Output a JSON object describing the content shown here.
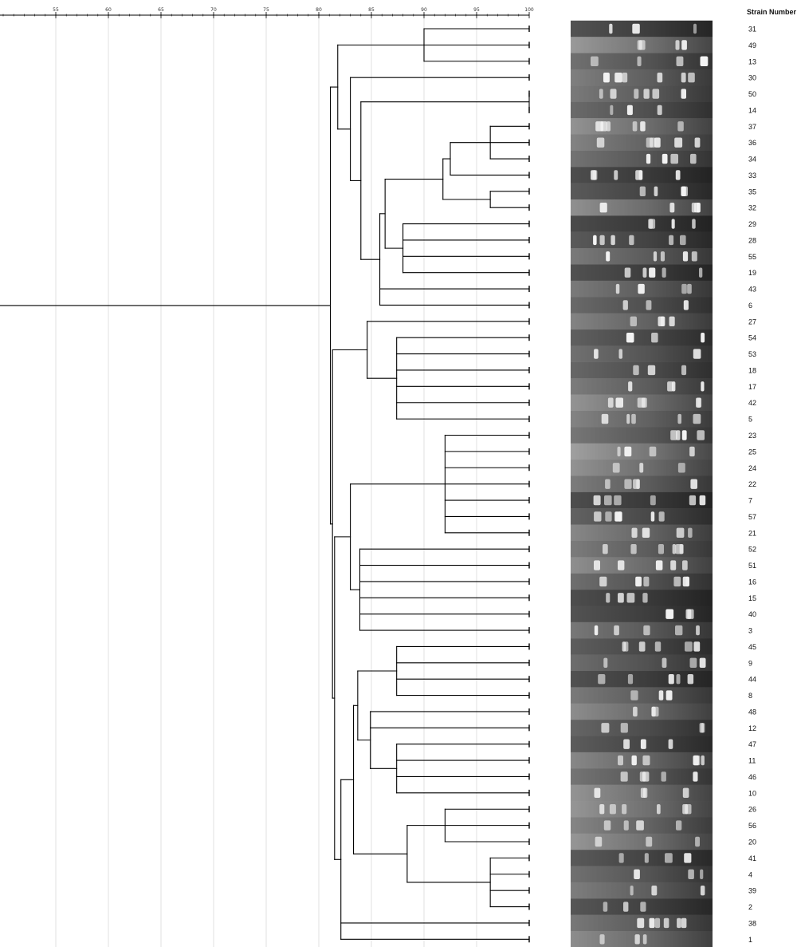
{
  "chart_data": {
    "type": "dendrogram",
    "scale": {
      "min": 50,
      "max": 100,
      "ticks": [
        55,
        60,
        65,
        70,
        75,
        80,
        85,
        90,
        95,
        100
      ]
    },
    "column_header": "Strain Number",
    "strains": [
      "31",
      "49",
      "13",
      "30",
      "50",
      "14",
      "37",
      "36",
      "34",
      "33",
      "35",
      "32",
      "29",
      "28",
      "55",
      "19",
      "43",
      "6",
      "27",
      "54",
      "53",
      "18",
      "17",
      "42",
      "5",
      "23",
      "25",
      "24",
      "22",
      "7",
      "57",
      "21",
      "52",
      "51",
      "16",
      "15",
      "40",
      "3",
      "45",
      "9",
      "44",
      "8",
      "48",
      "12",
      "47",
      "11",
      "46",
      "10",
      "26",
      "56",
      "20",
      "41",
      "4",
      "39",
      "2",
      "38",
      "1"
    ],
    "merges": [
      {
        "members": [
          "31",
          "49",
          "13"
        ],
        "similarity": 90.0
      },
      {
        "members": [
          "50",
          "14"
        ],
        "similarity": 100
      },
      {
        "members": [
          "37",
          "36",
          "34"
        ],
        "similarity": 96.3
      },
      {
        "members": [
          "37",
          "36",
          "34",
          "33"
        ],
        "similarity": 92.5
      },
      {
        "members": [
          "35",
          "32"
        ],
        "similarity": 96.3
      },
      {
        "members": [
          "37",
          "36",
          "34",
          "33",
          "35",
          "32"
        ],
        "similarity": 91.8
      },
      {
        "members": [
          "29",
          "28",
          "55",
          "19"
        ],
        "similarity": 88.0
      },
      {
        "members": [
          "37",
          "36",
          "34",
          "33",
          "35",
          "32",
          "29",
          "28",
          "55",
          "19"
        ],
        "similarity": 86.3
      },
      {
        "members": [
          "37",
          "36",
          "34",
          "33",
          "35",
          "32",
          "29",
          "28",
          "55",
          "19",
          "43",
          "6"
        ],
        "similarity": 85.8
      },
      {
        "members": [
          "50",
          "14",
          "37",
          "36",
          "34",
          "33",
          "35",
          "32",
          "29",
          "28",
          "55",
          "19",
          "43",
          "6"
        ],
        "similarity": 84.0
      },
      {
        "members": [
          "30",
          "50",
          "14",
          "37",
          "36",
          "34",
          "33",
          "35",
          "32",
          "29",
          "28",
          "55",
          "19",
          "43",
          "6"
        ],
        "similarity": 83.0
      },
      {
        "members": [
          "31",
          "49",
          "13",
          "30",
          "50",
          "14",
          "37",
          "36",
          "34",
          "33",
          "35",
          "32",
          "29",
          "28",
          "55",
          "19",
          "43",
          "6"
        ],
        "similarity": 81.8
      },
      {
        "members": [
          "54",
          "53",
          "18",
          "17",
          "42",
          "5"
        ],
        "similarity": 87.4
      },
      {
        "members": [
          "27",
          "54",
          "53",
          "18",
          "17",
          "42",
          "5"
        ],
        "similarity": 84.6
      },
      {
        "members": [
          "23",
          "25",
          "24",
          "22",
          "7",
          "57",
          "21"
        ],
        "similarity": 92.0
      },
      {
        "members": [
          "52",
          "51",
          "16",
          "15",
          "40",
          "3"
        ],
        "similarity": 83.9
      },
      {
        "members": [
          "23",
          "25",
          "24",
          "22",
          "7",
          "57",
          "21",
          "52",
          "51",
          "16",
          "15",
          "40",
          "3"
        ],
        "similarity": 83.0
      },
      {
        "members": [
          "45",
          "9",
          "44",
          "8"
        ],
        "similarity": 87.4
      },
      {
        "members": [
          "47",
          "11",
          "46",
          "10"
        ],
        "similarity": 87.4
      },
      {
        "members": [
          "48",
          "12",
          "47",
          "11",
          "46",
          "10"
        ],
        "similarity": 84.9
      },
      {
        "members": [
          "45",
          "9",
          "44",
          "8",
          "48",
          "12",
          "47",
          "11",
          "46",
          "10"
        ],
        "similarity": 83.7
      },
      {
        "members": [
          "26",
          "56",
          "20"
        ],
        "similarity": 92.0
      },
      {
        "members": [
          "41",
          "4",
          "39",
          "2"
        ],
        "similarity": 96.3
      },
      {
        "members": [
          "26",
          "56",
          "20",
          "41",
          "4",
          "39",
          "2"
        ],
        "similarity": 88.4
      },
      {
        "members": [
          "45",
          "9",
          "44",
          "8",
          "48",
          "12",
          "47",
          "11",
          "46",
          "10",
          "26",
          "56",
          "20",
          "41",
          "4",
          "39",
          "2"
        ],
        "similarity": 83.3
      },
      {
        "members": [
          "45",
          "9",
          "44",
          "8",
          "48",
          "12",
          "47",
          "11",
          "46",
          "10",
          "26",
          "56",
          "20",
          "41",
          "4",
          "39",
          "2",
          "38",
          "1"
        ],
        "similarity": 82.1
      },
      {
        "members": [
          "23",
          "25",
          "24",
          "22",
          "7",
          "57",
          "21",
          "52",
          "51",
          "16",
          "15",
          "40",
          "3",
          "45",
          "9",
          "44",
          "8",
          "48",
          "12",
          "47",
          "11",
          "46",
          "10",
          "26",
          "56",
          "20",
          "41",
          "4",
          "39",
          "2",
          "38",
          "1"
        ],
        "similarity": 81.5
      },
      {
        "members": [
          "27",
          "54",
          "53",
          "18",
          "17",
          "42",
          "5",
          "23",
          "25",
          "24",
          "22",
          "7",
          "57",
          "21",
          "52",
          "51",
          "16",
          "15",
          "40",
          "3",
          "45",
          "9",
          "44",
          "8",
          "48",
          "12",
          "47",
          "11",
          "46",
          "10",
          "26",
          "56",
          "20",
          "41",
          "4",
          "39",
          "2",
          "38",
          "1"
        ],
        "similarity": 81.3
      },
      {
        "members": [
          "ALL"
        ],
        "similarity": 81.1
      }
    ]
  }
}
